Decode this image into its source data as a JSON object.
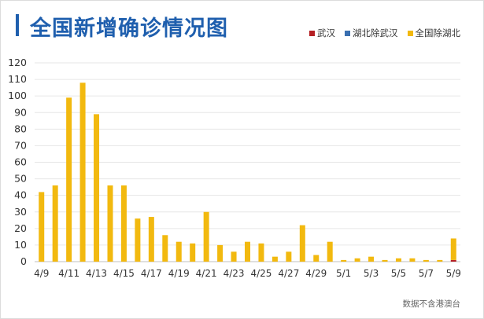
{
  "title": "全国新增确诊情况图",
  "footnote": "数据不含港澳台",
  "colors": {
    "wuhan": "#b52024",
    "hubei_ex_wuhan": "#3a6fb0",
    "national_ex_hubei": "#f2b90f",
    "title": "#1f5fae"
  },
  "chart_data": {
    "type": "bar",
    "stacked": true,
    "title": "全国新增确诊情况图",
    "xlabel": "",
    "ylabel": "",
    "ylim": [
      0,
      120
    ],
    "yticks": [
      0,
      10,
      20,
      30,
      40,
      50,
      60,
      70,
      80,
      90,
      100,
      110,
      120
    ],
    "grid": true,
    "legend_position": "top-right",
    "categories": [
      "4/9",
      "4/10",
      "4/11",
      "4/12",
      "4/13",
      "4/14",
      "4/15",
      "4/16",
      "4/17",
      "4/18",
      "4/19",
      "4/20",
      "4/21",
      "4/22",
      "4/23",
      "4/24",
      "4/25",
      "4/26",
      "4/27",
      "4/28",
      "4/29",
      "4/30",
      "5/1",
      "5/2",
      "5/3",
      "5/4",
      "5/5",
      "5/6",
      "5/7",
      "5/8",
      "5/9"
    ],
    "tick_labels": [
      "4/9",
      "4/11",
      "4/13",
      "4/15",
      "4/17",
      "4/19",
      "4/21",
      "4/23",
      "4/25",
      "4/27",
      "4/29",
      "5/1",
      "5/3",
      "5/5",
      "5/7",
      "5/9"
    ],
    "series": [
      {
        "name": "武汉",
        "color": "#b52024",
        "values": [
          0,
          0,
          0,
          0,
          0,
          0,
          0,
          0,
          0,
          0,
          0,
          0,
          0,
          0,
          0,
          0,
          0,
          0,
          0,
          0,
          0,
          0,
          0,
          0,
          0,
          0,
          0,
          0,
          0,
          0,
          1
        ]
      },
      {
        "name": "湖北除武汉",
        "color": "#3a6fb0",
        "values": [
          0,
          0,
          0,
          0,
          0,
          0,
          0,
          0,
          0,
          0,
          0,
          0,
          0,
          0,
          0,
          0,
          0,
          0,
          0,
          0,
          0,
          0,
          0,
          0,
          0,
          0,
          0,
          0,
          0,
          0,
          0
        ]
      },
      {
        "name": "全国除湖北",
        "color": "#f2b90f",
        "values": [
          42,
          46,
          99,
          108,
          89,
          46,
          46,
          26,
          27,
          16,
          12,
          11,
          30,
          10,
          6,
          12,
          11,
          3,
          6,
          22,
          4,
          12,
          1,
          2,
          3,
          1,
          2,
          2,
          1,
          1,
          13
        ]
      }
    ]
  }
}
